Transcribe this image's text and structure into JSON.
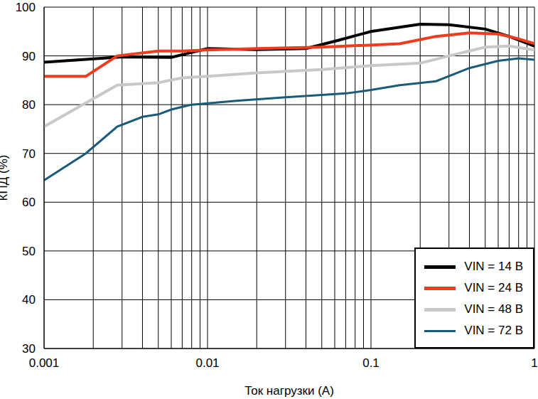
{
  "chart_data": {
    "type": "line",
    "x_label": "Ток нагрузки (А)",
    "y_label": "КПД (%)",
    "log": "x",
    "grid": true,
    "legend": "lower right",
    "xlim": [
      0.001,
      1
    ],
    "ylim": [
      30,
      100
    ],
    "xticks": [
      0.001,
      0.01,
      0.1,
      1
    ],
    "yticks": [
      30,
      40,
      50,
      60,
      70,
      80,
      90,
      100
    ],
    "series": [
      {
        "name": "VIN = 14 В",
        "color": "#000000",
        "x": [
          0.001,
          0.003,
          0.006,
          0.01,
          0.02,
          0.04,
          0.06,
          0.1,
          0.2,
          0.3,
          0.5,
          0.7,
          1
        ],
        "values": [
          88.7,
          89.8,
          89.7,
          91.5,
          91.3,
          91.5,
          93,
          95,
          96.5,
          96.4,
          95.5,
          94,
          92
        ]
      },
      {
        "name": "VIN = 24 В",
        "color": "#f03c1e",
        "x": [
          0.001,
          0.0018,
          0.0028,
          0.005,
          0.007,
          0.01,
          0.02,
          0.05,
          0.07,
          0.15,
          0.25,
          0.4,
          0.6,
          0.8,
          1
        ],
        "values": [
          85.8,
          85.8,
          90,
          91,
          91,
          91.2,
          91.5,
          91.8,
          92,
          92.5,
          94,
          94.7,
          94.5,
          93.5,
          92.5
        ]
      },
      {
        "name": "VIN = 48 В",
        "color": "#c8c8c8",
        "x": [
          0.001,
          0.0028,
          0.005,
          0.007,
          0.01,
          0.02,
          0.05,
          0.1,
          0.2,
          0.3,
          0.5,
          0.7,
          1
        ],
        "values": [
          75.5,
          84,
          84.5,
          85.5,
          85.8,
          86.5,
          87.2,
          88,
          88.5,
          90,
          91.8,
          92,
          91.2
        ]
      },
      {
        "name": "VIN = 72 В",
        "color": "#1a5b7a",
        "x": [
          0.001,
          0.0018,
          0.0028,
          0.004,
          0.005,
          0.006,
          0.008,
          0.015,
          0.03,
          0.05,
          0.07,
          0.1,
          0.15,
          0.25,
          0.4,
          0.6,
          0.8,
          1
        ],
        "values": [
          64.5,
          70,
          75.5,
          77.5,
          78,
          79,
          80,
          80.8,
          81.5,
          82,
          82.3,
          83,
          84,
          84.8,
          87.5,
          89,
          89.5,
          89.2
        ]
      }
    ]
  }
}
